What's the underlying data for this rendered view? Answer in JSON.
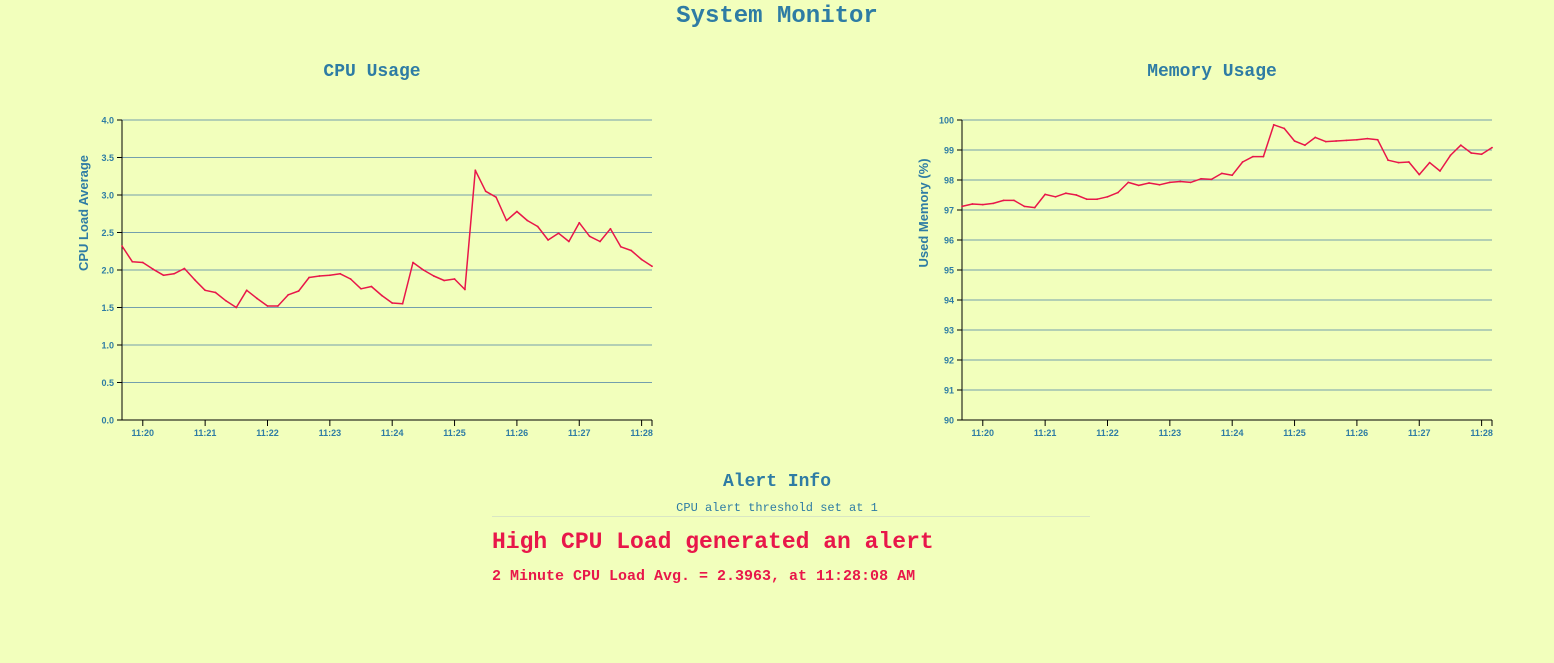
{
  "page": {
    "title": "System Monitor"
  },
  "colors": {
    "background": "#f2ffbc",
    "accent": "#2e7ca4",
    "line": "#e8174a",
    "grid": "#4a7fa8"
  },
  "chart_data": [
    {
      "type": "line",
      "title": "CPU Usage",
      "ylabel": "CPU Load Average",
      "xlabel": "",
      "ylim": [
        0,
        4
      ],
      "yticks": [
        "0.0",
        "0.5",
        "1.0",
        "1.5",
        "2.0",
        "2.5",
        "3.0",
        "3.5",
        "4.0"
      ],
      "xticks": [
        "11:20",
        "11:21",
        "11:22",
        "11:23",
        "11:24",
        "11:25",
        "11:26",
        "11:27",
        "11:28"
      ],
      "xlim": [
        "11:19:40",
        "11:28:10"
      ],
      "grid": true,
      "series": [
        {
          "x": [
            "11:19:40",
            "11:19:50",
            "11:20:00",
            "11:20:10",
            "11:20:20",
            "11:20:30",
            "11:20:40",
            "11:20:50",
            "11:21:00",
            "11:21:10",
            "11:21:20",
            "11:21:30",
            "11:21:40",
            "11:21:50",
            "11:22:00",
            "11:22:10",
            "11:22:20",
            "11:22:30",
            "11:22:40",
            "11:22:50",
            "11:23:00",
            "11:23:10",
            "11:23:20",
            "11:23:30",
            "11:23:40",
            "11:23:50",
            "11:24:00",
            "11:24:10",
            "11:24:20",
            "11:24:30",
            "11:24:40",
            "11:24:50",
            "11:25:00",
            "11:25:10",
            "11:25:20",
            "11:25:30",
            "11:25:40",
            "11:25:50",
            "11:26:00",
            "11:26:10",
            "11:26:20",
            "11:26:30",
            "11:26:40",
            "11:26:50",
            "11:27:00",
            "11:27:10",
            "11:27:20",
            "11:27:30",
            "11:27:40",
            "11:27:50",
            "11:28:00",
            "11:28:10"
          ],
          "values": [
            2.32,
            2.11,
            2.1,
            2.01,
            1.93,
            1.95,
            2.02,
            1.87,
            1.73,
            1.7,
            1.59,
            1.5,
            1.73,
            1.62,
            1.52,
            1.52,
            1.67,
            1.72,
            1.9,
            1.92,
            1.93,
            1.95,
            1.88,
            1.75,
            1.78,
            1.66,
            1.56,
            1.55,
            2.1,
            2.0,
            1.92,
            1.86,
            1.88,
            1.74,
            3.33,
            3.05,
            2.97,
            2.66,
            2.78,
            2.66,
            2.58,
            2.4,
            2.49,
            2.38,
            2.63,
            2.45,
            2.38,
            2.55,
            2.31,
            2.26,
            2.14,
            2.05
          ]
        }
      ]
    },
    {
      "type": "line",
      "title": "Memory Usage",
      "ylabel": "Used Memory (%)",
      "xlabel": "",
      "ylim": [
        90,
        100
      ],
      "yticks": [
        "90",
        "91",
        "92",
        "93",
        "94",
        "95",
        "96",
        "97",
        "98",
        "99",
        "100"
      ],
      "xticks": [
        "11:20",
        "11:21",
        "11:22",
        "11:23",
        "11:24",
        "11:25",
        "11:26",
        "11:27",
        "11:28"
      ],
      "xlim": [
        "11:19:40",
        "11:28:10"
      ],
      "grid": true,
      "series": [
        {
          "x": [
            "11:19:40",
            "11:19:50",
            "11:20:00",
            "11:20:10",
            "11:20:20",
            "11:20:30",
            "11:20:40",
            "11:20:50",
            "11:21:00",
            "11:21:10",
            "11:21:20",
            "11:21:30",
            "11:21:40",
            "11:21:50",
            "11:22:00",
            "11:22:10",
            "11:22:20",
            "11:22:30",
            "11:22:40",
            "11:22:50",
            "11:23:00",
            "11:23:10",
            "11:23:20",
            "11:23:30",
            "11:23:40",
            "11:23:50",
            "11:24:00",
            "11:24:10",
            "11:24:20",
            "11:24:30",
            "11:24:40",
            "11:24:50",
            "11:25:00",
            "11:25:10",
            "11:25:20",
            "11:25:30",
            "11:25:40",
            "11:25:50",
            "11:26:00",
            "11:26:10",
            "11:26:20",
            "11:26:30",
            "11:26:40",
            "11:26:50",
            "11:27:00",
            "11:27:10",
            "11:27:20",
            "11:27:30",
            "11:27:40",
            "11:27:50",
            "11:28:00",
            "11:28:10"
          ],
          "values": [
            97.12,
            97.2,
            97.18,
            97.22,
            97.32,
            97.32,
            97.12,
            97.08,
            97.52,
            97.44,
            97.56,
            97.5,
            97.36,
            97.36,
            97.44,
            97.58,
            97.92,
            97.82,
            97.9,
            97.84,
            97.92,
            97.95,
            97.92,
            98.04,
            98.02,
            98.22,
            98.16,
            98.6,
            98.78,
            98.78,
            99.84,
            99.72,
            99.3,
            99.16,
            99.42,
            99.28,
            99.3,
            99.32,
            99.34,
            99.38,
            99.34,
            98.66,
            98.58,
            98.6,
            98.18,
            98.58,
            98.3,
            98.82,
            99.16,
            98.9,
            98.86,
            99.08
          ]
        }
      ]
    }
  ],
  "alert": {
    "title": "Alert Info",
    "threshold_text": "CPU alert threshold set at 1",
    "message": "High CPU Load generated an alert",
    "detail": "2 Minute CPU Load Avg. = 2.3963, at 11:28:08 AM"
  }
}
